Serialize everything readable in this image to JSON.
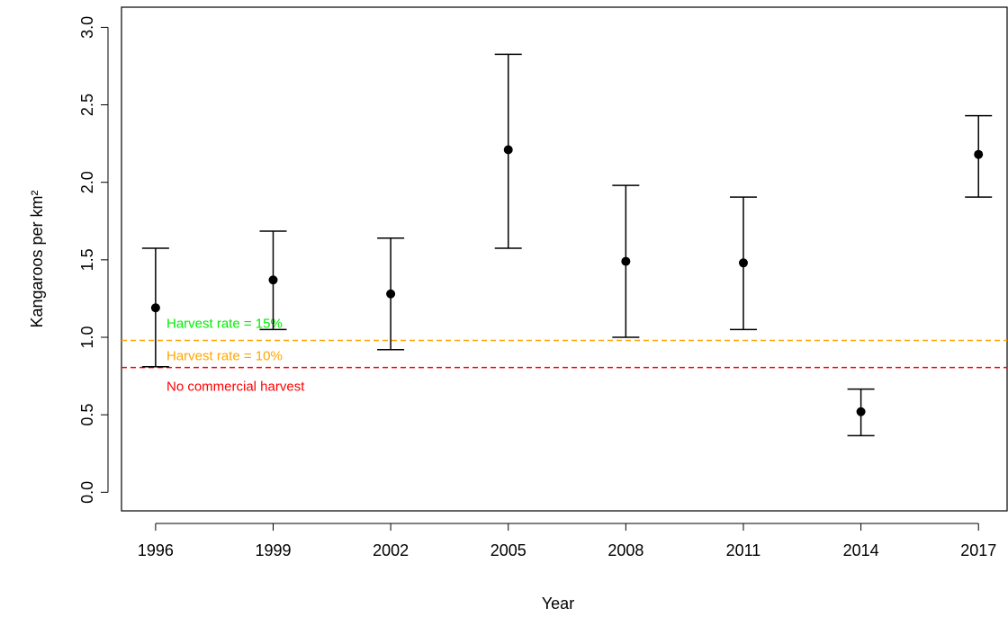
{
  "chart_data": {
    "type": "errorbar",
    "x_label": "Year",
    "y_label": "Kangaroos per km²",
    "x": [
      1996,
      1999,
      2002,
      2005,
      2008,
      2011,
      2014,
      2017
    ],
    "values": [
      1.19,
      1.37,
      1.28,
      2.21,
      1.49,
      1.48,
      0.52,
      2.18
    ],
    "lower": [
      0.81,
      1.05,
      0.92,
      1.575,
      1.0,
      1.05,
      0.365,
      1.905
    ],
    "upper": [
      1.575,
      1.685,
      1.64,
      2.826,
      1.98,
      1.905,
      0.666,
      2.43
    ],
    "color": "#000000",
    "xlim": [
      1995.13,
      2017.73
    ],
    "xticks": [
      1996,
      1999,
      2002,
      2005,
      2008,
      2011,
      2014,
      2017
    ],
    "ylim": [
      -0.12,
      3.13
    ],
    "yticks": [
      {
        "value": 0,
        "label": "0.0"
      },
      0.5,
      {
        "value": 1,
        "label": "1.0"
      },
      1.5,
      {
        "value": 2,
        "label": "2.0"
      },
      2.5,
      {
        "value": 3,
        "label": "3.0"
      }
    ],
    "reference_lines": [
      {
        "value": 0.98,
        "label": "Harvest rate = 10%",
        "color": "#ffa500"
      },
      {
        "value": 0.805,
        "label": "No commercial harvest",
        "color": "#ff0000"
      }
    ],
    "annotations": [
      {
        "text": "Harvest rate = 15%",
        "color": "#00ee00"
      }
    ]
  }
}
